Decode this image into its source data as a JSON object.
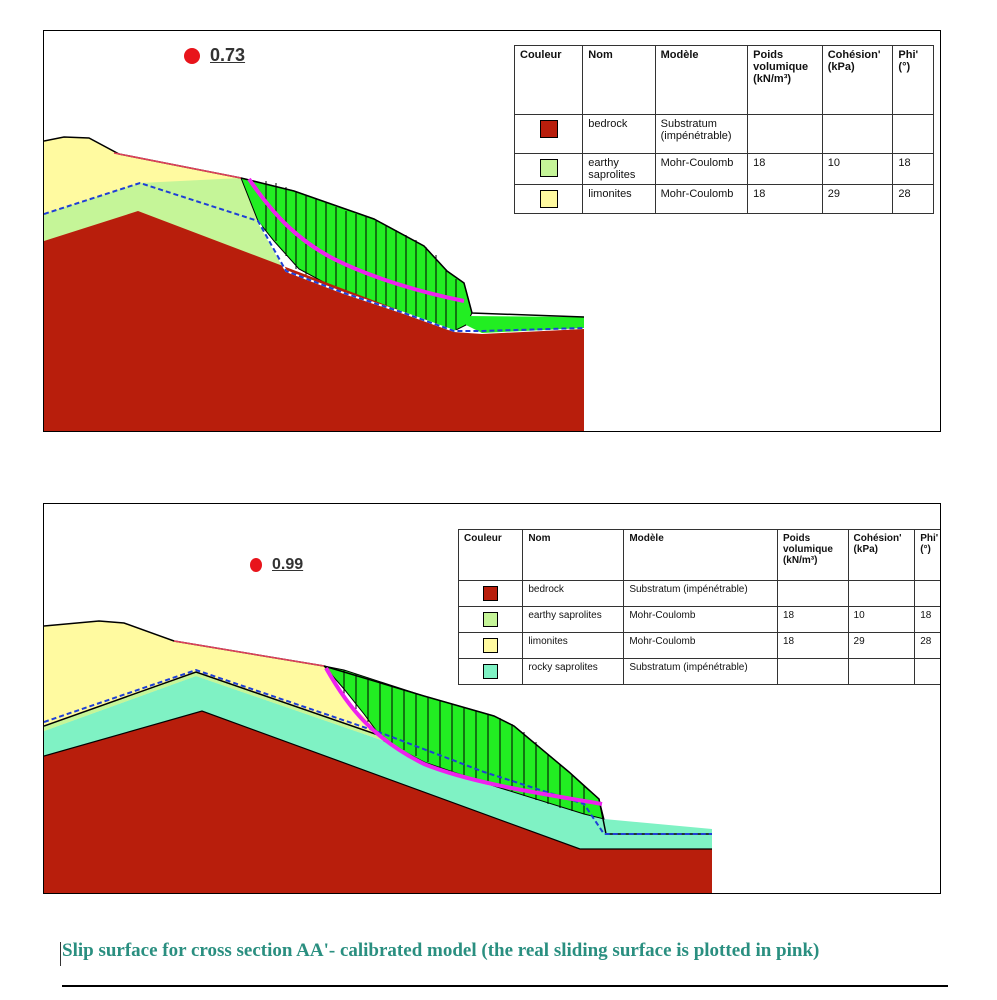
{
  "figure_a": {
    "factor_of_safety": "0.73",
    "table": {
      "headers": {
        "couleur": "Couleur",
        "nom": "Nom",
        "modele": "Modèle",
        "poids": "Poids volumique (kN/m³)",
        "cohesion": "Cohésion' (kPa)",
        "phi": "Phi' (°)"
      },
      "rows": [
        {
          "color": "#b81e0c",
          "name": "bedrock",
          "model": "Substratum (impénétrable)",
          "weight": "",
          "cohesion": "",
          "phi": ""
        },
        {
          "color": "#c5f598",
          "name": "earthy saprolites",
          "model": "Mohr-Coulomb",
          "weight": "18",
          "cohesion": "10",
          "phi": "18"
        },
        {
          "color": "#fffaa0",
          "name": "limonites",
          "model": "Mohr-Coulomb",
          "weight": "18",
          "cohesion": "29",
          "phi": "28"
        }
      ]
    }
  },
  "figure_b": {
    "factor_of_safety": "0.99",
    "table": {
      "headers": {
        "couleur": "Couleur",
        "nom": "Nom",
        "modele": "Modèle",
        "poids": "Poids volumique (kN/m³)",
        "cohesion": "Cohésion' (kPa)",
        "phi": "Phi' (°)"
      },
      "rows": [
        {
          "color": "#b81e0c",
          "name": "bedrock",
          "model": "Substratum (impénétrable)",
          "weight": "",
          "cohesion": "",
          "phi": ""
        },
        {
          "color": "#c5f598",
          "name": "earthy saprolites",
          "model": "Mohr-Coulomb",
          "weight": "18",
          "cohesion": "10",
          "phi": "18"
        },
        {
          "color": "#fffaa0",
          "name": "limonites",
          "model": "Mohr-Coulomb",
          "weight": "18",
          "cohesion": "29",
          "phi": "28"
        },
        {
          "color": "#7ff2c4",
          "name": "rocky saprolites",
          "model": "Substratum (impénétrable)",
          "weight": "",
          "cohesion": "",
          "phi": ""
        }
      ]
    }
  },
  "caption": "Slip surface for cross section AA'- calibrated model (the real sliding surface is plotted in pink)",
  "colors": {
    "bedrock": "#b81e0c",
    "earthy_saprolites": "#c5f598",
    "limonites": "#fffaa0",
    "rocky_saprolites": "#7ff2c4",
    "slide_mass": "#22ee22",
    "slip_surface": "#ee22ee",
    "water_table": "#1f3fd6",
    "ground_line": "#e0405a"
  }
}
